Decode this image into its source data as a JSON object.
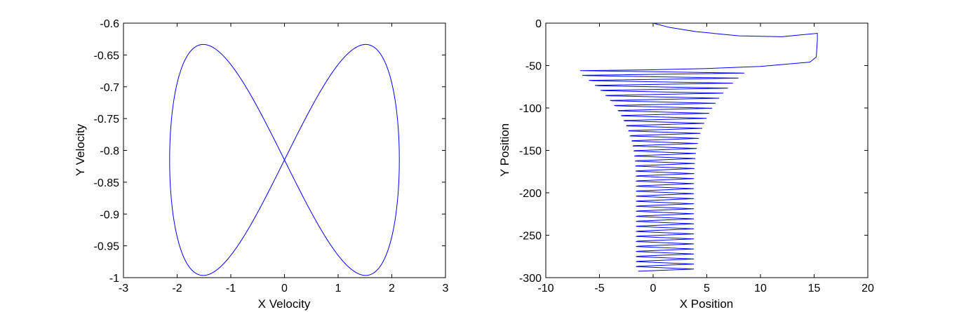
{
  "chart_data": [
    {
      "type": "line",
      "title": "",
      "xlabel": "X Velocity",
      "ylabel": "Y Velocity",
      "xlim": [
        -3,
        3
      ],
      "ylim": [
        -1,
        -0.6
      ],
      "xticks": [
        -3,
        -2,
        -1,
        0,
        1,
        2,
        3
      ],
      "xtick_labels": [
        "-3",
        "-2",
        "-1",
        "0",
        "1",
        "2",
        "3"
      ],
      "yticks": [
        -0.6,
        -0.65,
        -0.7,
        -0.75,
        -0.8,
        -0.85,
        -0.9,
        -0.95,
        -1
      ],
      "ytick_labels": [
        "-0.6",
        "-0.65",
        "-0.7",
        "-0.75",
        "-0.8",
        "-0.85",
        "-0.9",
        "-0.95",
        "-1"
      ],
      "grid": false,
      "line_color": "#0000ff",
      "series": [
        {
          "shape": "figure-eight (lemniscate)",
          "center": [
            0,
            -0.815
          ],
          "x_extent": [
            -2.14,
            2.14
          ],
          "y_extent": [
            -0.985,
            -0.622
          ],
          "lobe_peaks_x": [
            -1.5,
            1.5
          ]
        }
      ]
    },
    {
      "type": "line",
      "title": "",
      "xlabel": "X Position",
      "ylabel": "Y Position",
      "xlim": [
        -10,
        20
      ],
      "ylim": [
        -300,
        0
      ],
      "xticks": [
        -10,
        -5,
        0,
        5,
        10,
        15,
        20
      ],
      "xtick_labels": [
        "-10",
        "-5",
        "0",
        "5",
        "10",
        "15",
        "20"
      ],
      "yticks": [
        0,
        -50,
        -100,
        -150,
        -200,
        -250,
        -300
      ],
      "ytick_labels": [
        "0",
        "-50",
        "-100",
        "-150",
        "-200",
        "-250",
        "-300"
      ],
      "grid": false,
      "line_color": "#0000ff",
      "series": [
        {
          "segments": {
            "initial_path": [
              [
                0,
                0
              ],
              [
                1.5,
                -5
              ],
              [
                4,
                -10
              ],
              [
                8,
                -15
              ],
              [
                12,
                -16
              ],
              [
                15.3,
                -12
              ],
              [
                15.3,
                -20
              ],
              [
                15.2,
                -40
              ],
              [
                14.6,
                -46
              ],
              [
                10,
                -51
              ],
              [
                5,
                -53.5
              ],
              [
                0,
                -55
              ],
              [
                -6.8,
                -56
              ]
            ],
            "spiral_start": [
              -6.8,
              -56
            ],
            "spiral_end_y": -287,
            "spiral_row_count": 40,
            "spiral_left_x": [
              -6.8,
              -1.6
            ],
            "spiral_right_x": [
              8.5,
              3.8
            ]
          }
        }
      ]
    }
  ]
}
